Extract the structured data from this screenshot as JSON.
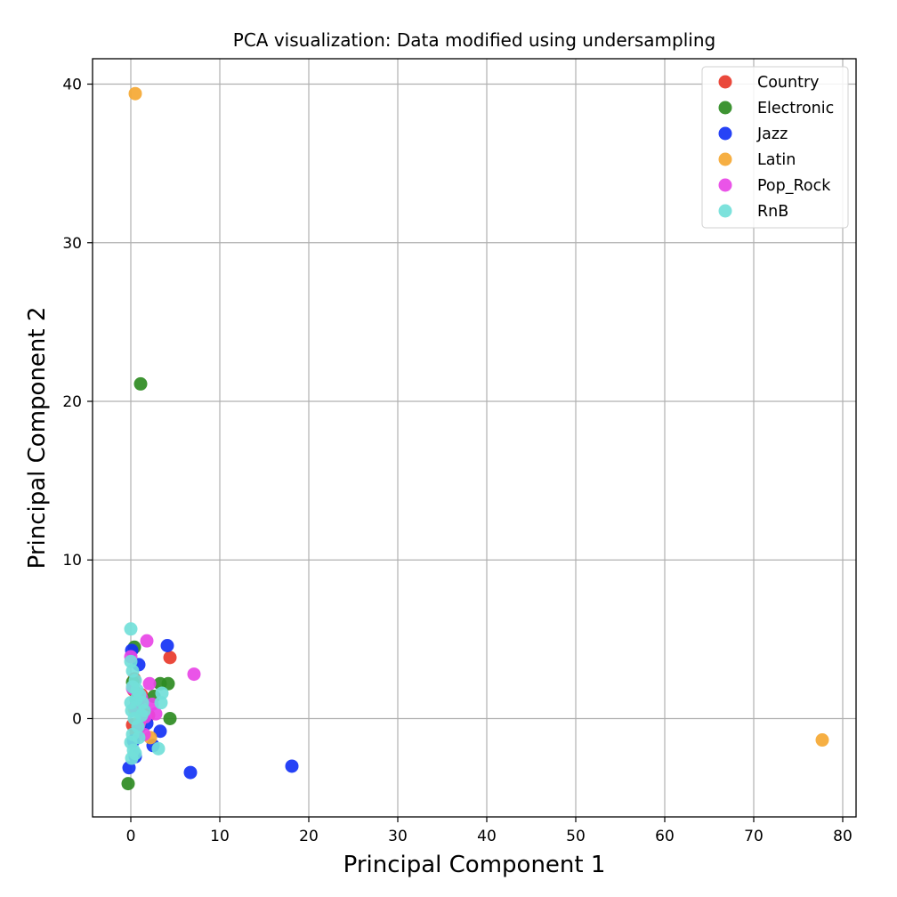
{
  "chart_data": {
    "type": "scatter",
    "title": "PCA visualization: Data modified using undersampling",
    "xlabel": "Principal Component 1",
    "ylabel": "Principal Component 2",
    "xlim": [
      -4.3,
      81.5
    ],
    "ylim": [
      -6.2,
      41.6
    ],
    "xticks": [
      "0",
      "10",
      "20",
      "30",
      "40",
      "50",
      "60",
      "70",
      "80"
    ],
    "yticks": [
      "0",
      "10",
      "20",
      "30",
      "40"
    ],
    "grid": true,
    "legend_position": "top-right",
    "series": [
      {
        "name": "Country",
        "color": "#e8392b",
        "points": [
          [
            4.4,
            3.85
          ],
          [
            0.3,
            1.8
          ],
          [
            0.8,
            1.1
          ],
          [
            1.5,
            0.5
          ],
          [
            0.2,
            -0.4
          ],
          [
            0.6,
            -0.9
          ],
          [
            1.2,
            1.5
          ],
          [
            0.4,
            2.5
          ],
          [
            2.0,
            0.2
          ]
        ]
      },
      {
        "name": "Electronic",
        "color": "#2e8b22",
        "points": [
          [
            1.1,
            21.1
          ],
          [
            0.4,
            4.5
          ],
          [
            3.3,
            2.2
          ],
          [
            4.2,
            2.2
          ],
          [
            4.4,
            0.0
          ],
          [
            -0.3,
            -4.1
          ],
          [
            0.2,
            2.3
          ],
          [
            1.0,
            -0.5
          ],
          [
            2.6,
            1.4
          ],
          [
            0.6,
            1.2
          ]
        ]
      },
      {
        "name": "Jazz",
        "color": "#1432f5",
        "points": [
          [
            4.1,
            4.6
          ],
          [
            18.1,
            -3.0
          ],
          [
            6.7,
            -3.4
          ],
          [
            3.3,
            -0.8
          ],
          [
            2.5,
            -1.7
          ],
          [
            0.9,
            3.4
          ],
          [
            -0.2,
            -3.1
          ],
          [
            0.5,
            -2.4
          ],
          [
            0.1,
            4.3
          ],
          [
            1.8,
            -0.3
          ],
          [
            0.3,
            -1.4
          ]
        ]
      },
      {
        "name": "Latin",
        "color": "#f5a833",
        "points": [
          [
            0.5,
            39.4
          ],
          [
            77.7,
            -1.35
          ],
          [
            2.2,
            -1.2
          ],
          [
            0.4,
            0.6
          ],
          [
            1.0,
            -0.2
          ]
        ]
      },
      {
        "name": "Pop_Rock",
        "color": "#e845e6",
        "points": [
          [
            1.8,
            4.9
          ],
          [
            7.1,
            2.8
          ],
          [
            2.1,
            2.2
          ],
          [
            2.8,
            0.3
          ],
          [
            1.5,
            -1.0
          ],
          [
            0.0,
            3.9
          ],
          [
            1.2,
            1.3
          ],
          [
            0.5,
            0.7
          ],
          [
            2.4,
            0.9
          ],
          [
            0.9,
            -0.4
          ],
          [
            0.2,
            1.9
          ],
          [
            1.6,
            0.1
          ]
        ]
      },
      {
        "name": "RnB",
        "color": "#72dfd9",
        "points": [
          [
            0.0,
            5.65
          ],
          [
            3.5,
            1.6
          ],
          [
            3.4,
            1.0
          ],
          [
            3.1,
            -1.9
          ],
          [
            0.0,
            3.6
          ],
          [
            0.2,
            3.0
          ],
          [
            0.5,
            2.4
          ],
          [
            0.7,
            1.8
          ],
          [
            1.0,
            1.5
          ],
          [
            1.3,
            1.0
          ],
          [
            0.1,
            0.5
          ],
          [
            0.4,
            0.0
          ],
          [
            0.8,
            -0.5
          ],
          [
            0.2,
            -1.0
          ],
          [
            0.0,
            -1.5
          ],
          [
            0.3,
            -2.0
          ],
          [
            0.1,
            -2.5
          ],
          [
            1.5,
            0.5
          ],
          [
            0.6,
            1.2
          ],
          [
            0.9,
            -1.2
          ],
          [
            0.2,
            2.0
          ],
          [
            1.2,
            0.2
          ],
          [
            0.0,
            1.0
          ],
          [
            0.5,
            -2.2
          ]
        ]
      }
    ]
  }
}
